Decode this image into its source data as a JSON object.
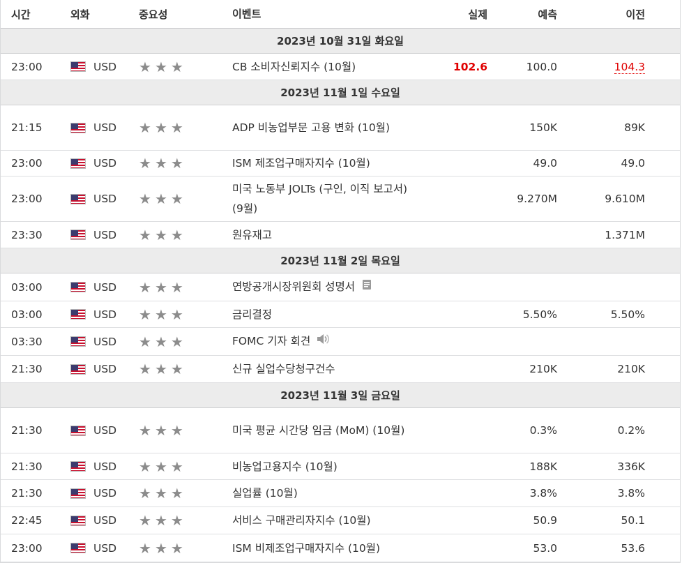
{
  "columns": {
    "time": "시간",
    "currency": "외화",
    "importance": "중요성",
    "event": "이벤트",
    "actual": "실제",
    "forecast": "예측",
    "previous": "이전"
  },
  "groups": [
    {
      "date": "2023년 10월 31일 화요일",
      "rows": [
        {
          "time": "23:00",
          "currency": "USD",
          "event": "CB 소비자신뢰지수 (10월)",
          "actual": "102.6",
          "forecast": "100.0",
          "previous": "104.3"
        }
      ]
    },
    {
      "date": "2023년 11월 1일 수요일",
      "rows": [
        {
          "time": "21:15",
          "currency": "USD",
          "event": "ADP 비농업부문 고용 변화 (10월)",
          "actual": "",
          "forecast": "150K",
          "previous": "89K"
        },
        {
          "time": "23:00",
          "currency": "USD",
          "event": "ISM 제조업구매자지수 (10월)",
          "actual": "",
          "forecast": "49.0",
          "previous": "49.0"
        },
        {
          "time": "23:00",
          "currency": "USD",
          "event": "미국 노동부 JOLTs (구인, 이직 보고서) (9월)",
          "actual": "",
          "forecast": "9.270M",
          "previous": "9.610M"
        },
        {
          "time": "23:30",
          "currency": "USD",
          "event": "원유재고",
          "actual": "",
          "forecast": "",
          "previous": "1.371M"
        }
      ]
    },
    {
      "date": "2023년 11월 2일 목요일",
      "rows": [
        {
          "time": "03:00",
          "currency": "USD",
          "event": "연방공개시장위원회 성명서",
          "actual": "",
          "forecast": "",
          "previous": ""
        },
        {
          "time": "03:00",
          "currency": "USD",
          "event": "금리결정",
          "actual": "",
          "forecast": "5.50%",
          "previous": "5.50%"
        },
        {
          "time": "03:30",
          "currency": "USD",
          "event": "FOMC 기자 회견",
          "actual": "",
          "forecast": "",
          "previous": ""
        },
        {
          "time": "21:30",
          "currency": "USD",
          "event": "신규 실업수당청구건수",
          "actual": "",
          "forecast": "210K",
          "previous": "210K"
        }
      ]
    },
    {
      "date": "2023년 11월 3일 금요일",
      "rows": [
        {
          "time": "21:30",
          "currency": "USD",
          "event": "미국 평균 시간당 임금 (MoM) (10월)",
          "actual": "",
          "forecast": "0.3%",
          "previous": "0.2%"
        },
        {
          "time": "21:30",
          "currency": "USD",
          "event": "비농업고용지수 (10월)",
          "actual": "",
          "forecast": "188K",
          "previous": "336K"
        },
        {
          "time": "21:30",
          "currency": "USD",
          "event": "실업률 (10월)",
          "actual": "",
          "forecast": "3.8%",
          "previous": "3.8%"
        },
        {
          "time": "22:45",
          "currency": "USD",
          "event": "서비스 구매관리자지수 (10월)",
          "actual": "",
          "forecast": "50.9",
          "previous": "50.1"
        },
        {
          "time": "23:00",
          "currency": "USD",
          "event": "ISM 비제조업구매자지수 (10월)",
          "actual": "",
          "forecast": "53.0",
          "previous": "53.6"
        }
      ]
    }
  ],
  "importance_stars": 3,
  "colors": {
    "actual_highlight": "#e00000",
    "date_bar": "#ececec",
    "star": "#8c8c8c"
  }
}
